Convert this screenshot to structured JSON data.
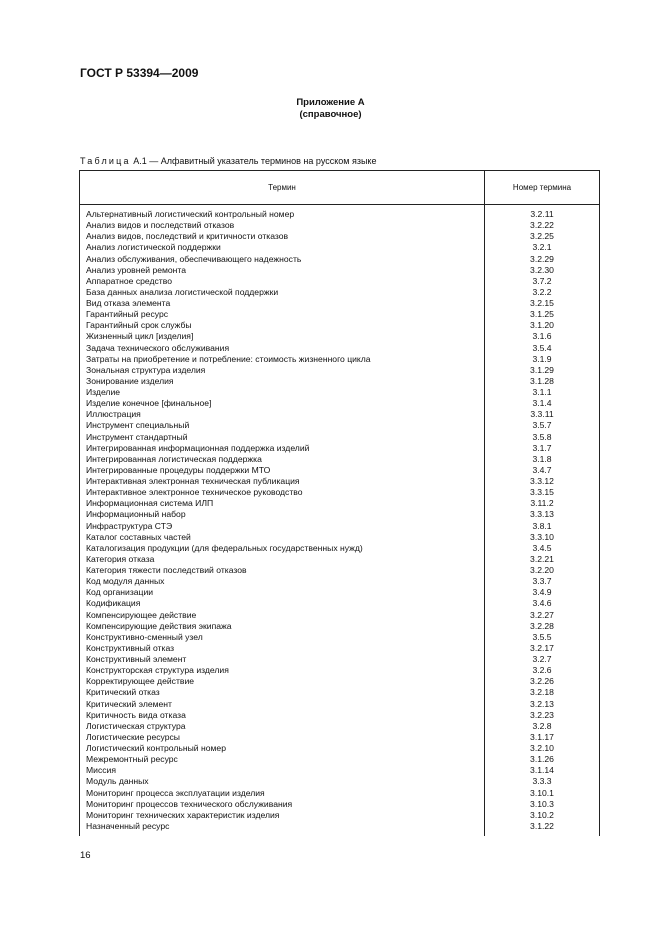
{
  "header": {
    "doc_id": "ГОСТ Р 53394—2009"
  },
  "appendix": {
    "title": "Приложение А",
    "subtitle": "(справочное)"
  },
  "table": {
    "caption_prefix": "Таблица",
    "caption_text": "А.1 — Алфавитный указатель терминов на русском языке",
    "columns": [
      "Термин",
      "Номер термина"
    ],
    "rows": [
      [
        "Альтернативный логистический контрольный номер",
        "3.2.11"
      ],
      [
        "Анализ видов и последствий отказов",
        "3.2.22"
      ],
      [
        "Анализ видов, последствий и критичности отказов",
        "3.2.25"
      ],
      [
        "Анализ логистической поддержки",
        "3.2.1"
      ],
      [
        "Анализ обслуживания, обеспечивающего надежность",
        "3.2.29"
      ],
      [
        "Анализ уровней ремонта",
        "3.2.30"
      ],
      [
        "Аппаратное средство",
        "3.7.2"
      ],
      [
        "База данных анализа логистической поддержки",
        "3.2.2"
      ],
      [
        "Вид отказа элемента",
        "3.2.15"
      ],
      [
        "Гарантийный ресурс",
        "3.1.25"
      ],
      [
        "Гарантийный срок службы",
        "3.1.20"
      ],
      [
        "Жизненный цикл [изделия]",
        "3.1.6"
      ],
      [
        "Задача технического обслуживания",
        "3.5.4"
      ],
      [
        "Затраты на приобретение и потребление: стоимость жизненного цикла",
        "3.1.9"
      ],
      [
        "Зональная структура изделия",
        "3.1.29"
      ],
      [
        "Зонирование изделия",
        "3.1.28"
      ],
      [
        "Изделие",
        "3.1.1"
      ],
      [
        "Изделие конечное [финальное]",
        "3.1.4"
      ],
      [
        "Иллюстрация",
        "3.3.11"
      ],
      [
        "Инструмент специальный",
        "3.5.7"
      ],
      [
        "Инструмент стандартный",
        "3.5.8"
      ],
      [
        "Интегрированная информационная поддержка изделий",
        "3.1.7"
      ],
      [
        "Интегрированная логистическая поддержка",
        "3.1.8"
      ],
      [
        "Интегрированные процедуры поддержки МТО",
        "3.4.7"
      ],
      [
        "Интерактивная электронная техническая публикация",
        "3.3.12"
      ],
      [
        "Интерактивное электронное техническое руководство",
        "3.3.15"
      ],
      [
        "Информационная система ИЛП",
        "3.11.2"
      ],
      [
        "Информационный набор",
        "3.3.13"
      ],
      [
        "Инфраструктура СТЭ",
        "3.8.1"
      ],
      [
        "Каталог составных частей",
        "3.3.10"
      ],
      [
        "Каталогизация продукции (для федеральных государственных нужд)",
        "3.4.5"
      ],
      [
        "Категория отказа",
        "3.2.21"
      ],
      [
        "Категория тяжести последствий отказов",
        "3.2.20"
      ],
      [
        "Код модуля данных",
        "3.3.7"
      ],
      [
        "Код организации",
        "3.4.9"
      ],
      [
        "Кодификация",
        "3.4.6"
      ],
      [
        "Компенсирующее действие",
        "3.2.27"
      ],
      [
        "Компенсирующие действия экипажа",
        "3.2.28"
      ],
      [
        "Конструктивно-сменный узел",
        "3.5.5"
      ],
      [
        "Конструктивный отказ",
        "3.2.17"
      ],
      [
        "Конструктивный элемент",
        "3.2.7"
      ],
      [
        "Конструкторская структура изделия",
        "3.2.6"
      ],
      [
        "Корректирующее действие",
        "3.2.26"
      ],
      [
        "Критический отказ",
        "3.2.18"
      ],
      [
        "Критический элемент",
        "3.2.13"
      ],
      [
        "Критичность вида отказа",
        "3.2.23"
      ],
      [
        "Логистическая структура",
        "3.2.8"
      ],
      [
        "Логистические ресурсы",
        "3.1.17"
      ],
      [
        "Логистический контрольный номер",
        "3.2.10"
      ],
      [
        "Межремонтный ресурс",
        "3.1.26"
      ],
      [
        "Миссия",
        "3.1.14"
      ],
      [
        "Модуль данных",
        "3.3.3"
      ],
      [
        "Мониторинг процесса эксплуатации изделия",
        "3.10.1"
      ],
      [
        "Мониторинг процессов технического обслуживания",
        "3.10.3"
      ],
      [
        "Мониторинг технических характеристик изделия",
        "3.10.2"
      ],
      [
        "Назначенный ресурс",
        "3.1.22"
      ]
    ]
  },
  "footer": {
    "page_number": "16"
  }
}
